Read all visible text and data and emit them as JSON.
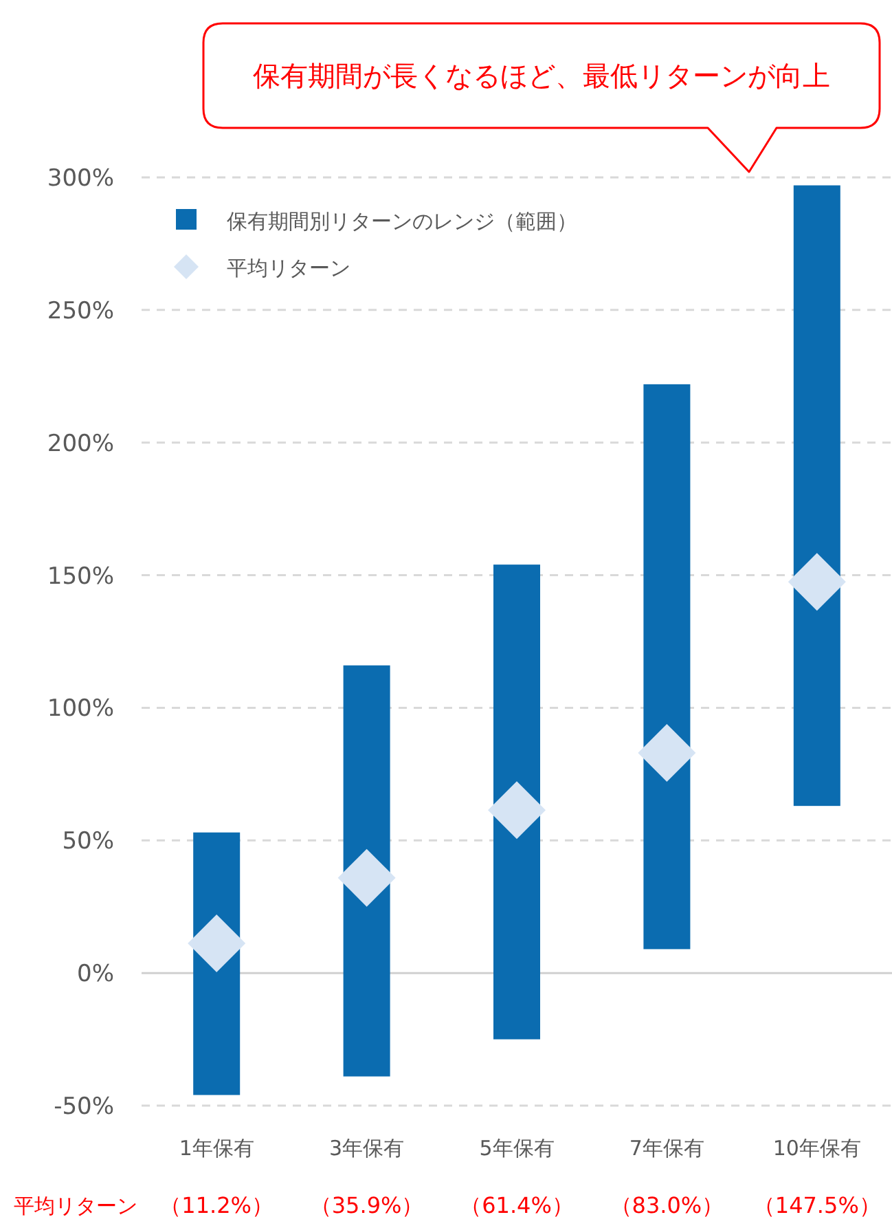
{
  "chart_data": {
    "type": "bar",
    "categories": [
      "1年保有",
      "3年保有",
      "5年保有",
      "7年保有",
      "10年保有"
    ],
    "series": [
      {
        "name": "保有期間別リターンのレンジ（範囲）",
        "type": "bar",
        "color": "#0b6cb0",
        "base": [
          -46,
          -39,
          -25,
          9,
          63
        ],
        "values": [
          99,
          155,
          179,
          213,
          234
        ]
      },
      {
        "name": "平均リターン",
        "type": "scatter",
        "marker": "diamond",
        "color": "#d6e4f4",
        "x": [
          "1年保有",
          "3年保有",
          "5年保有",
          "7年保有",
          "10年保有"
        ],
        "values": [
          11.2,
          35.9,
          61.4,
          83.0,
          147.5
        ],
        "value_labels": [
          "（11.2%）",
          "（35.9%）",
          "（61.4%）",
          "（83.0%）",
          "（147.5%）"
        ]
      }
    ],
    "ylim": [
      -50,
      300
    ],
    "yticks": [
      {
        "value": -50,
        "label": "-50%"
      },
      {
        "value": 0,
        "label": "0%"
      },
      {
        "value": 50,
        "label": "50%"
      },
      {
        "value": 100,
        "label": "100%"
      },
      {
        "value": 150,
        "label": "150%"
      },
      {
        "value": 200,
        "label": "200%"
      },
      {
        "value": 250,
        "label": "250%"
      },
      {
        "value": 300,
        "label": "300%"
      }
    ],
    "grid": "y",
    "legend": "top left",
    "annotations": [
      "保有期間が長くなるほど、最低リターンが向上",
      "平均リターン"
    ]
  }
}
